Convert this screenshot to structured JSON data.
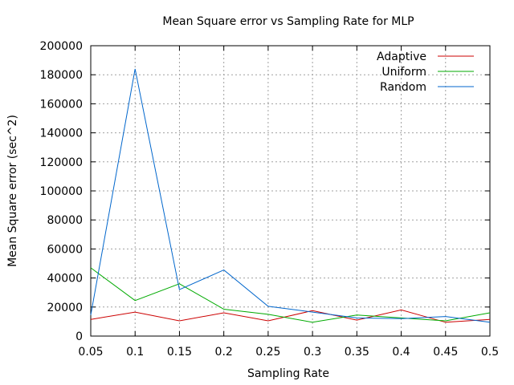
{
  "chart_data": {
    "type": "line",
    "title": "Mean Square error vs Sampling Rate for MLP",
    "xlabel": "Sampling Rate",
    "ylabel": "Mean Square error (sec^2)",
    "xlim": [
      0.05,
      0.5
    ],
    "ylim": [
      0,
      200000
    ],
    "x_ticks": [
      "0.05",
      "0.1",
      "0.15",
      "0.2",
      "0.25",
      "0.3",
      "0.35",
      "0.4",
      "0.45",
      "0.5"
    ],
    "y_ticks": [
      "0",
      "20000",
      "40000",
      "60000",
      "80000",
      "100000",
      "120000",
      "140000",
      "160000",
      "180000",
      "200000"
    ],
    "grid": true,
    "legend_position": "top-right",
    "x": [
      0.05,
      0.1,
      0.15,
      0.2,
      0.25,
      0.3,
      0.35,
      0.4,
      0.45,
      0.5
    ],
    "series": [
      {
        "name": "Adaptive",
        "color": "#cc0000",
        "values": [
          11500,
          16500,
          10500,
          16000,
          10500,
          17500,
          11000,
          18000,
          9500,
          11500
        ]
      },
      {
        "name": "Uniform",
        "color": "#00aa00",
        "values": [
          47000,
          24500,
          36000,
          18500,
          15000,
          9500,
          14500,
          12500,
          10500,
          16000
        ]
      },
      {
        "name": "Random",
        "color": "#0066cc",
        "values": [
          14500,
          184000,
          32000,
          45500,
          20500,
          16500,
          12500,
          12000,
          13500,
          9500
        ]
      }
    ]
  }
}
